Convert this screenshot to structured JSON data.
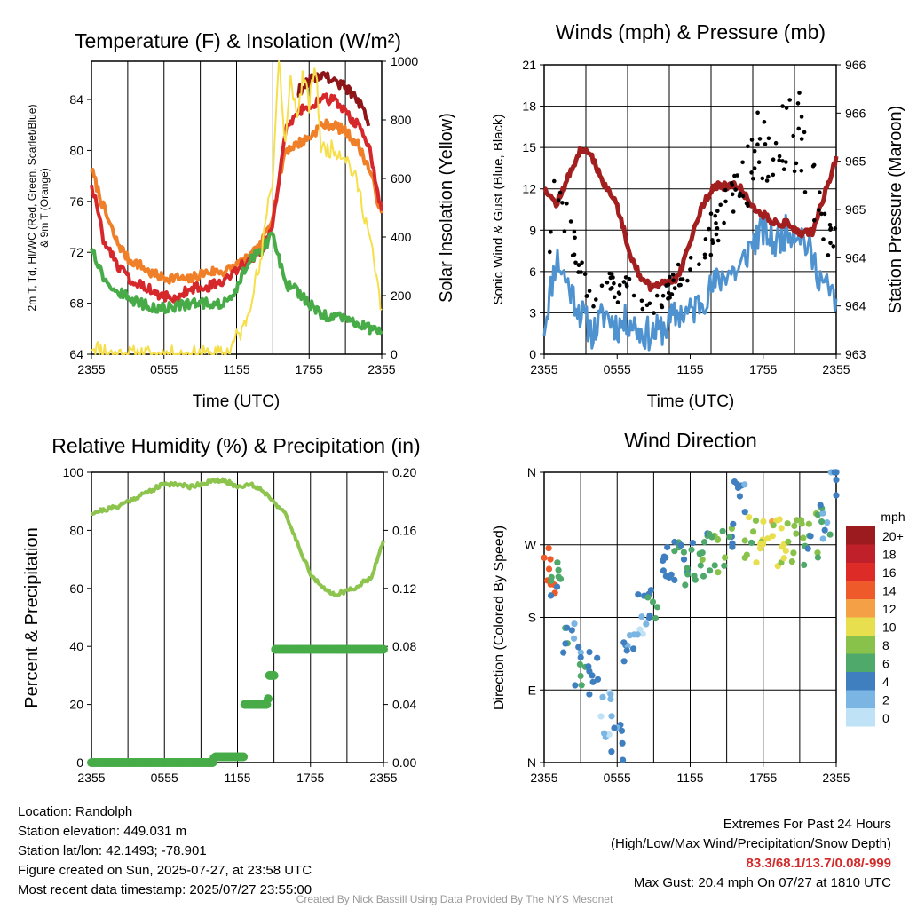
{
  "panels": {
    "temperature": {
      "title": "Temperature (F) & Insolation (W/m²)",
      "ylabel_left": [
        "2m T, Td, HI/WC (Red, Green, Scarlet/Blue)",
        "& 9m T (Orange)"
      ],
      "ylabel_right": "Solar Insolation (Yellow)",
      "xlabel": "Time (UTC)",
      "x_ticks": [
        "2355",
        "0555",
        "1155",
        "1755",
        "2355"
      ],
      "y_ticks_left": [
        "64",
        "68",
        "72",
        "76",
        "80",
        "84"
      ],
      "y_ticks_right": [
        "0",
        "200",
        "400",
        "600",
        "800",
        "1000"
      ]
    },
    "winds": {
      "title": "Winds (mph) & Pressure (mb)",
      "ylabel_left": "Sonic Wind & Gust (Blue, Black)",
      "ylabel_right": "Station Pressure (Maroon)",
      "xlabel": "Time (UTC)",
      "x_ticks": [
        "2355",
        "0555",
        "1155",
        "1755",
        "2355"
      ],
      "y_ticks_left": [
        "0",
        "3",
        "6",
        "9",
        "12",
        "15",
        "18",
        "21"
      ],
      "y_ticks_right": [
        "963",
        "964",
        "964",
        "965",
        "965",
        "966",
        "966"
      ]
    },
    "humidity": {
      "title": "Relative Humidity (%) & Precipitation (in)",
      "ylabel_left": "Percent & Precipitation",
      "x_ticks": [
        "2355",
        "0555",
        "1155",
        "1755",
        "2355"
      ],
      "y_ticks_left": [
        "0",
        "20",
        "40",
        "60",
        "80",
        "100"
      ],
      "y_ticks_right": [
        "0.00",
        "0.04",
        "0.08",
        "0.12",
        "0.16",
        "0.20"
      ]
    },
    "direction": {
      "title": "Wind Direction",
      "ylabel_left": "Direction (Colored By Speed)",
      "x_ticks": [
        "2355",
        "0555",
        "1155",
        "1755",
        "2355"
      ],
      "y_ticks_left": [
        "N",
        "E",
        "S",
        "W",
        "N"
      ],
      "colorbar": {
        "unit": "mph",
        "labels": [
          "20+",
          "18",
          "16",
          "14",
          "12",
          "10",
          "8",
          "6",
          "4",
          "2",
          "0"
        ],
        "colors": [
          "#9c1b1e",
          "#c0202a",
          "#dd2c27",
          "#ee5a2a",
          "#f4a047",
          "#e8df4e",
          "#88c24a",
          "#4fa96a",
          "#3f7fc0",
          "#7bb5e3",
          "#bfe2f6"
        ]
      }
    }
  },
  "info": {
    "location": "Location: Randolph",
    "elevation": "Station elevation: 449.031 m",
    "latlon": "Station lat/lon: 42.1493; -78.901",
    "created": "Figure created on Sun, 2025-07-27, at 23:58 UTC",
    "recent": "Most recent data timestamp: 2025/07/27 23:55:00"
  },
  "extremes": {
    "heading": "Extremes For Past 24 Hours",
    "subheading": "(High/Low/Max Wind/Precipitation/Snow Depth)",
    "values": "83.3/68.1/13.7/0.08/-999",
    "max_gust": "Max Gust: 20.4 mph On 07/27 at 1810 UTC"
  },
  "credit": "Created By Nick Bassill Using Data Provided By The NYS Mesonet",
  "chart_data": [
    {
      "type": "line",
      "x_unit": "hours since 2355 UTC",
      "xlim": [
        0,
        24
      ],
      "ylim": [
        64,
        87
      ],
      "y2lim": [
        0,
        1000
      ],
      "series": [
        {
          "color": "#f07f2a",
          "x": [
            0,
            1,
            2,
            3,
            4,
            5,
            6,
            7,
            8,
            9,
            10,
            11,
            12,
            13,
            14,
            15,
            16,
            17,
            18,
            19,
            20,
            21,
            22,
            23,
            24
          ],
          "y": [
            78.5,
            75.5,
            73,
            71.5,
            71,
            70.3,
            70,
            70,
            69.8,
            70.3,
            70.5,
            70.5,
            71,
            71.5,
            72.5,
            75,
            80,
            80.5,
            81,
            82,
            82,
            81.5,
            80.5,
            78.5,
            75
          ]
        },
        {
          "color": "#d6282b",
          "x": [
            0,
            1,
            2,
            3,
            4,
            5,
            6,
            7,
            8,
            9,
            10,
            11,
            12,
            13,
            14,
            15,
            16,
            17,
            18,
            19,
            20,
            21,
            22,
            23,
            24
          ],
          "y": [
            77.5,
            73,
            71.2,
            70,
            69.6,
            69,
            68.5,
            68.4,
            69,
            69.3,
            69.4,
            69.6,
            70.5,
            71.5,
            72,
            74,
            81.5,
            83,
            83.5,
            84,
            84,
            83,
            82,
            80,
            75
          ]
        },
        {
          "color": "#8e1618",
          "x": [
            17,
            18,
            19,
            20,
            21,
            22,
            23
          ],
          "y": [
            84.5,
            85.5,
            86,
            85.5,
            85,
            84,
            82
          ]
        },
        {
          "color": "#47ac48",
          "x": [
            0,
            1,
            2,
            3,
            4,
            5,
            6,
            7,
            8,
            9,
            10,
            11,
            12,
            13,
            14,
            15,
            16,
            17,
            18,
            19,
            20,
            21,
            22,
            23,
            24
          ],
          "y": [
            72.5,
            70,
            69,
            68.5,
            68,
            67.7,
            67.6,
            67.8,
            67.9,
            68,
            68,
            68,
            69,
            71.5,
            72,
            73.5,
            69.5,
            69,
            68,
            67,
            67,
            66.8,
            66.5,
            66,
            66
          ]
        },
        {
          "color": "#f6df48",
          "axis": "right",
          "x": [
            0,
            2,
            4,
            6,
            8,
            10,
            11,
            11.5,
            12,
            12.5,
            13,
            13.5,
            14,
            14.5,
            15,
            15.5,
            16,
            16.5,
            17,
            17.5,
            18,
            18.5,
            19,
            20,
            21,
            22,
            23,
            24
          ],
          "y": [
            30,
            0,
            0,
            0,
            0,
            0,
            0,
            20,
            60,
            80,
            150,
            250,
            300,
            500,
            600,
            1030,
            700,
            950,
            800,
            960,
            850,
            1000,
            700,
            700,
            680,
            580,
            400,
            150
          ]
        }
      ]
    },
    {
      "type": "line",
      "x_unit": "hours since 2355 UTC",
      "xlim": [
        0,
        24
      ],
      "ylim": [
        0,
        21
      ],
      "series": [
        {
          "color": "#4f92d0",
          "x": [
            0,
            1,
            2,
            3,
            4,
            5,
            6,
            7,
            8,
            9,
            10,
            11,
            12,
            13,
            14,
            15,
            16,
            17,
            18,
            19,
            20,
            21,
            22,
            23,
            24
          ],
          "y": [
            2,
            7,
            5,
            3,
            1.5,
            3,
            2,
            2.5,
            1.5,
            1.5,
            2,
            3,
            3,
            4,
            5,
            6,
            6,
            8,
            9,
            8,
            9,
            9,
            7,
            5,
            4
          ]
        },
        {
          "color": "#a31f1f",
          "axis": "right",
          "x": [
            0,
            1,
            2,
            3,
            4,
            5,
            6,
            7,
            8,
            9,
            10,
            11,
            12,
            13,
            14,
            15,
            16,
            17,
            18,
            19,
            20,
            21,
            22,
            23,
            24
          ],
          "y": [
            964.8,
            964.6,
            964.9,
            965.2,
            965.1,
            964.8,
            964.6,
            964.1,
            963.8,
            963.7,
            963.8,
            963.8,
            964.2,
            964.6,
            964.8,
            964.8,
            964.8,
            964.6,
            964.5,
            964.4,
            964.4,
            964.3,
            964.3,
            964.7,
            965.1
          ]
        }
      ]
    },
    {
      "type": "line",
      "x_unit": "hours since 2355 UTC",
      "xlim": [
        0,
        24
      ],
      "ylim": [
        0,
        100
      ],
      "y2lim": [
        0,
        0.2
      ],
      "series": [
        {
          "color": "#8dc44d",
          "x": [
            0,
            1,
            2,
            3,
            4,
            5,
            6,
            7,
            8,
            9,
            10,
            11,
            12,
            13,
            14,
            15,
            16,
            17,
            18,
            19,
            20,
            21,
            22,
            23,
            24
          ],
          "y": [
            86,
            87,
            88,
            90,
            92,
            94,
            96,
            96,
            95,
            96,
            97,
            97,
            95,
            96,
            94,
            90,
            85,
            75,
            65,
            60,
            58,
            59,
            61,
            64,
            76
          ]
        },
        {
          "color": "#47ac48",
          "axis": "right",
          "x": [
            0,
            10,
            10.1,
            12.5,
            12.6,
            14.5,
            14.6,
            15.0,
            15.1,
            24
          ],
          "y": [
            0,
            0,
            0.004,
            0.004,
            0.04,
            0.04,
            0.06,
            0.06,
            0.078,
            0.078
          ]
        }
      ]
    },
    {
      "type": "scatter",
      "x_unit": "hours since 2355 UTC",
      "xlim": [
        0,
        24
      ],
      "ylim_degrees": [
        0,
        360
      ],
      "points": [
        {
          "x": 0.5,
          "deg": 240,
          "mph": 14
        },
        {
          "x": 1,
          "deg": 220,
          "mph": 6
        },
        {
          "x": 2,
          "deg": 150,
          "mph": 4
        },
        {
          "x": 3,
          "deg": 120,
          "mph": 4
        },
        {
          "x": 4,
          "deg": 110,
          "mph": 3
        },
        {
          "x": 5,
          "deg": 60,
          "mph": 2
        },
        {
          "x": 6,
          "deg": 30,
          "mph": 4
        },
        {
          "x": 7,
          "deg": 140,
          "mph": 3
        },
        {
          "x": 8,
          "deg": 180,
          "mph": 2
        },
        {
          "x": 9,
          "deg": 190,
          "mph": 4
        },
        {
          "x": 10,
          "deg": 250,
          "mph": 4
        },
        {
          "x": 11,
          "deg": 255,
          "mph": 5
        },
        {
          "x": 12,
          "deg": 250,
          "mph": 5
        },
        {
          "x": 13,
          "deg": 258,
          "mph": 6
        },
        {
          "x": 14,
          "deg": 265,
          "mph": 7
        },
        {
          "x": 15,
          "deg": 270,
          "mph": 6
        },
        {
          "x": 16,
          "deg": 320,
          "mph": 4
        },
        {
          "x": 17,
          "deg": 275,
          "mph": 8
        },
        {
          "x": 18,
          "deg": 270,
          "mph": 10
        },
        {
          "x": 19,
          "deg": 272,
          "mph": 10
        },
        {
          "x": 20,
          "deg": 268,
          "mph": 9
        },
        {
          "x": 21,
          "deg": 275,
          "mph": 8
        },
        {
          "x": 22,
          "deg": 280,
          "mph": 6
        },
        {
          "x": 23,
          "deg": 290,
          "mph": 4
        },
        {
          "x": 24,
          "deg": 355,
          "mph": 3
        }
      ]
    }
  ]
}
